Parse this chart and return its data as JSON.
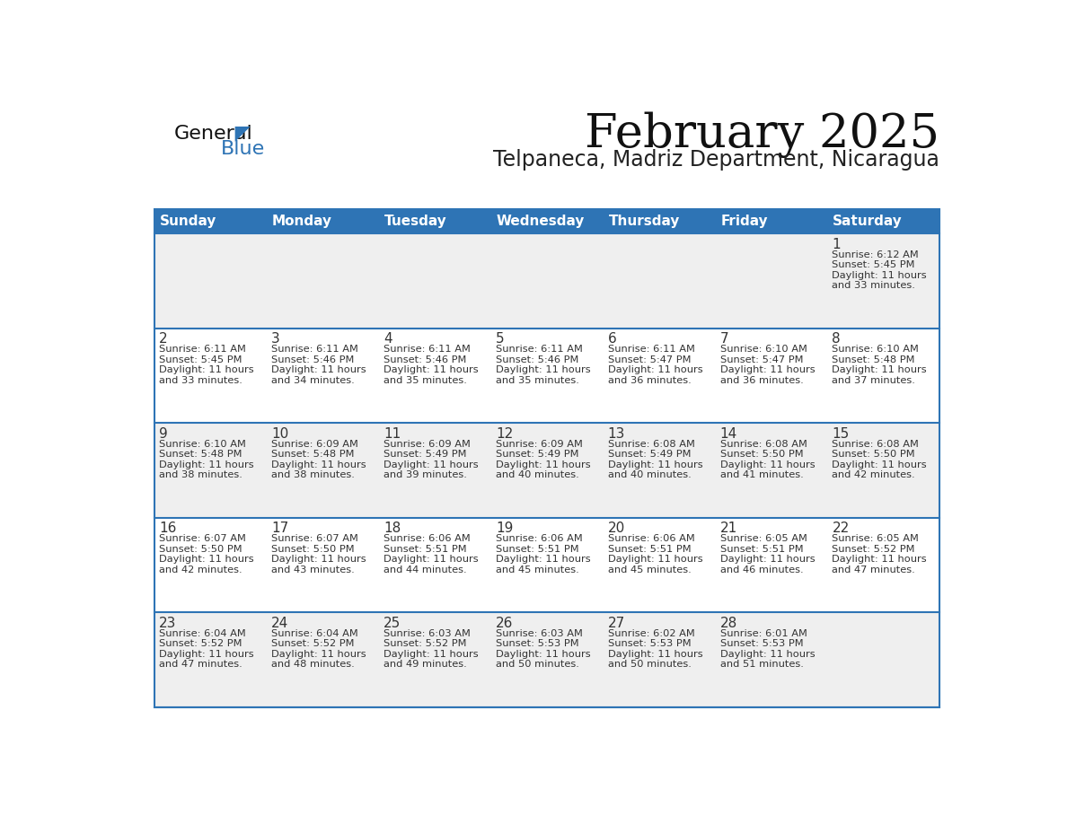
{
  "title": "February 2025",
  "subtitle": "Telpaneca, Madriz Department, Nicaragua",
  "days_of_week": [
    "Sunday",
    "Monday",
    "Tuesday",
    "Wednesday",
    "Thursday",
    "Friday",
    "Saturday"
  ],
  "header_bg": "#2E74B5",
  "header_text": "#FFFFFF",
  "cell_bg_light": "#EFEFEF",
  "cell_bg_white": "#FFFFFF",
  "divider_color": "#2E74B5",
  "text_color": "#333333",
  "title_color": "#111111",
  "subtitle_color": "#222222",
  "calendar_data": [
    [
      null,
      null,
      null,
      null,
      null,
      null,
      {
        "day": 1,
        "sunrise": "6:12 AM",
        "sunset": "5:45 PM",
        "daylight_h": "11 hours",
        "daylight_m": "33 minutes."
      }
    ],
    [
      {
        "day": 2,
        "sunrise": "6:11 AM",
        "sunset": "5:45 PM",
        "daylight_h": "11 hours",
        "daylight_m": "33 minutes."
      },
      {
        "day": 3,
        "sunrise": "6:11 AM",
        "sunset": "5:46 PM",
        "daylight_h": "11 hours",
        "daylight_m": "34 minutes."
      },
      {
        "day": 4,
        "sunrise": "6:11 AM",
        "sunset": "5:46 PM",
        "daylight_h": "11 hours",
        "daylight_m": "35 minutes."
      },
      {
        "day": 5,
        "sunrise": "6:11 AM",
        "sunset": "5:46 PM",
        "daylight_h": "11 hours",
        "daylight_m": "35 minutes."
      },
      {
        "day": 6,
        "sunrise": "6:11 AM",
        "sunset": "5:47 PM",
        "daylight_h": "11 hours",
        "daylight_m": "36 minutes."
      },
      {
        "day": 7,
        "sunrise": "6:10 AM",
        "sunset": "5:47 PM",
        "daylight_h": "11 hours",
        "daylight_m": "36 minutes."
      },
      {
        "day": 8,
        "sunrise": "6:10 AM",
        "sunset": "5:48 PM",
        "daylight_h": "11 hours",
        "daylight_m": "37 minutes."
      }
    ],
    [
      {
        "day": 9,
        "sunrise": "6:10 AM",
        "sunset": "5:48 PM",
        "daylight_h": "11 hours",
        "daylight_m": "38 minutes."
      },
      {
        "day": 10,
        "sunrise": "6:09 AM",
        "sunset": "5:48 PM",
        "daylight_h": "11 hours",
        "daylight_m": "38 minutes."
      },
      {
        "day": 11,
        "sunrise": "6:09 AM",
        "sunset": "5:49 PM",
        "daylight_h": "11 hours",
        "daylight_m": "39 minutes."
      },
      {
        "day": 12,
        "sunrise": "6:09 AM",
        "sunset": "5:49 PM",
        "daylight_h": "11 hours",
        "daylight_m": "40 minutes."
      },
      {
        "day": 13,
        "sunrise": "6:08 AM",
        "sunset": "5:49 PM",
        "daylight_h": "11 hours",
        "daylight_m": "40 minutes."
      },
      {
        "day": 14,
        "sunrise": "6:08 AM",
        "sunset": "5:50 PM",
        "daylight_h": "11 hours",
        "daylight_m": "41 minutes."
      },
      {
        "day": 15,
        "sunrise": "6:08 AM",
        "sunset": "5:50 PM",
        "daylight_h": "11 hours",
        "daylight_m": "42 minutes."
      }
    ],
    [
      {
        "day": 16,
        "sunrise": "6:07 AM",
        "sunset": "5:50 PM",
        "daylight_h": "11 hours",
        "daylight_m": "42 minutes."
      },
      {
        "day": 17,
        "sunrise": "6:07 AM",
        "sunset": "5:50 PM",
        "daylight_h": "11 hours",
        "daylight_m": "43 minutes."
      },
      {
        "day": 18,
        "sunrise": "6:06 AM",
        "sunset": "5:51 PM",
        "daylight_h": "11 hours",
        "daylight_m": "44 minutes."
      },
      {
        "day": 19,
        "sunrise": "6:06 AM",
        "sunset": "5:51 PM",
        "daylight_h": "11 hours",
        "daylight_m": "45 minutes."
      },
      {
        "day": 20,
        "sunrise": "6:06 AM",
        "sunset": "5:51 PM",
        "daylight_h": "11 hours",
        "daylight_m": "45 minutes."
      },
      {
        "day": 21,
        "sunrise": "6:05 AM",
        "sunset": "5:51 PM",
        "daylight_h": "11 hours",
        "daylight_m": "46 minutes."
      },
      {
        "day": 22,
        "sunrise": "6:05 AM",
        "sunset": "5:52 PM",
        "daylight_h": "11 hours",
        "daylight_m": "47 minutes."
      }
    ],
    [
      {
        "day": 23,
        "sunrise": "6:04 AM",
        "sunset": "5:52 PM",
        "daylight_h": "11 hours",
        "daylight_m": "47 minutes."
      },
      {
        "day": 24,
        "sunrise": "6:04 AM",
        "sunset": "5:52 PM",
        "daylight_h": "11 hours",
        "daylight_m": "48 minutes."
      },
      {
        "day": 25,
        "sunrise": "6:03 AM",
        "sunset": "5:52 PM",
        "daylight_h": "11 hours",
        "daylight_m": "49 minutes."
      },
      {
        "day": 26,
        "sunrise": "6:03 AM",
        "sunset": "5:53 PM",
        "daylight_h": "11 hours",
        "daylight_m": "50 minutes."
      },
      {
        "day": 27,
        "sunrise": "6:02 AM",
        "sunset": "5:53 PM",
        "daylight_h": "11 hours",
        "daylight_m": "50 minutes."
      },
      {
        "day": 28,
        "sunrise": "6:01 AM",
        "sunset": "5:53 PM",
        "daylight_h": "11 hours",
        "daylight_m": "51 minutes."
      },
      null
    ]
  ],
  "logo_text_general": "General",
  "logo_text_blue": "Blue",
  "logo_triangle_color": "#2E74B5",
  "logo_general_color": "#111111"
}
